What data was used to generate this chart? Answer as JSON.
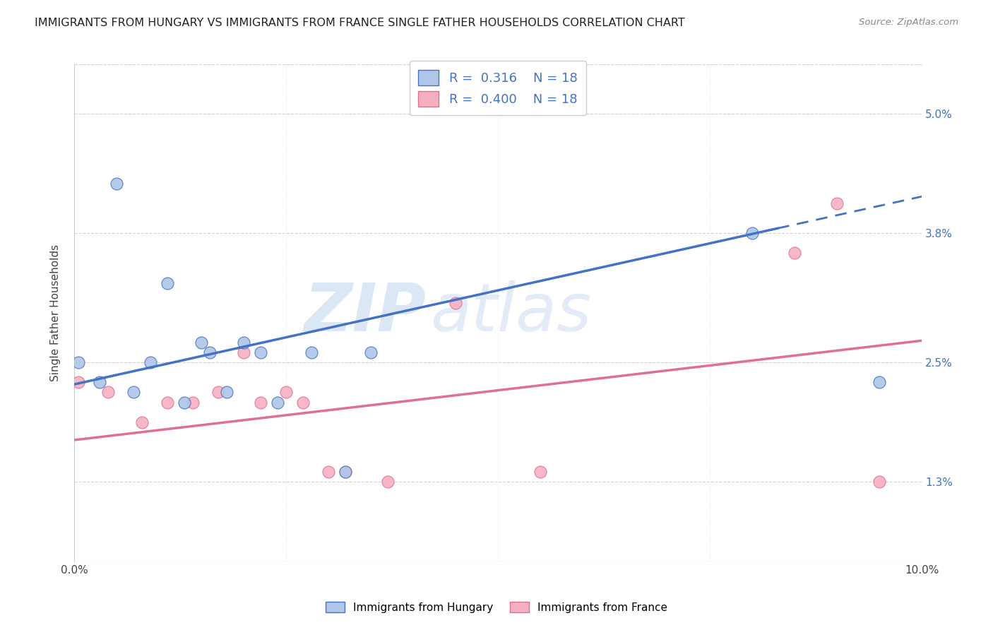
{
  "title": "IMMIGRANTS FROM HUNGARY VS IMMIGRANTS FROM FRANCE SINGLE FATHER HOUSEHOLDS CORRELATION CHART",
  "source": "Source: ZipAtlas.com",
  "ylabel": "Single Father Households",
  "ytick_labels": [
    "1.3%",
    "2.5%",
    "3.8%",
    "5.0%"
  ],
  "ytick_values": [
    1.3,
    2.5,
    3.8,
    5.0
  ],
  "xlim": [
    0.0,
    10.0
  ],
  "ylim": [
    0.5,
    5.5
  ],
  "legend_r_hungary": "0.316",
  "legend_n_hungary": "18",
  "legend_r_france": "0.400",
  "legend_n_france": "18",
  "hungary_scatter_color": "#aec6e8",
  "france_scatter_color": "#f5afc0",
  "hungary_line_color": "#4472c4",
  "france_line_color": "#e07090",
  "watermark_zip": "ZIP",
  "watermark_atlas": "atlas",
  "hungary_x": [
    0.05,
    0.3,
    0.5,
    0.7,
    0.9,
    1.1,
    1.3,
    1.5,
    1.6,
    1.8,
    2.0,
    2.2,
    2.4,
    2.8,
    3.2,
    3.5,
    8.0,
    9.5
  ],
  "hungary_y": [
    2.5,
    2.3,
    4.3,
    2.2,
    2.5,
    3.3,
    2.1,
    2.7,
    2.6,
    2.2,
    2.7,
    2.6,
    2.1,
    2.6,
    1.4,
    2.6,
    3.8,
    2.3
  ],
  "france_x": [
    0.05,
    0.4,
    0.8,
    1.1,
    1.4,
    1.7,
    2.0,
    2.2,
    2.5,
    2.7,
    3.0,
    3.2,
    3.7,
    4.5,
    5.5,
    8.5,
    9.0,
    9.5
  ],
  "france_y": [
    2.3,
    2.2,
    1.9,
    2.1,
    2.1,
    2.2,
    2.6,
    2.1,
    2.2,
    2.1,
    1.4,
    1.4,
    1.3,
    3.1,
    1.4,
    3.6,
    4.1,
    1.3
  ],
  "hungary_line_x0": 0.0,
  "hungary_line_x1": 8.3,
  "hungary_line_y0": 2.28,
  "hungary_line_y1": 3.85,
  "hungary_dash_x0": 8.3,
  "hungary_dash_x1": 10.0,
  "hungary_dash_y0": 3.85,
  "hungary_dash_y1": 4.17,
  "france_line_x0": 0.0,
  "france_line_x1": 10.0,
  "france_line_y0": 1.72,
  "france_line_y1": 2.72,
  "background_color": "#ffffff",
  "grid_color": "#cccccc"
}
